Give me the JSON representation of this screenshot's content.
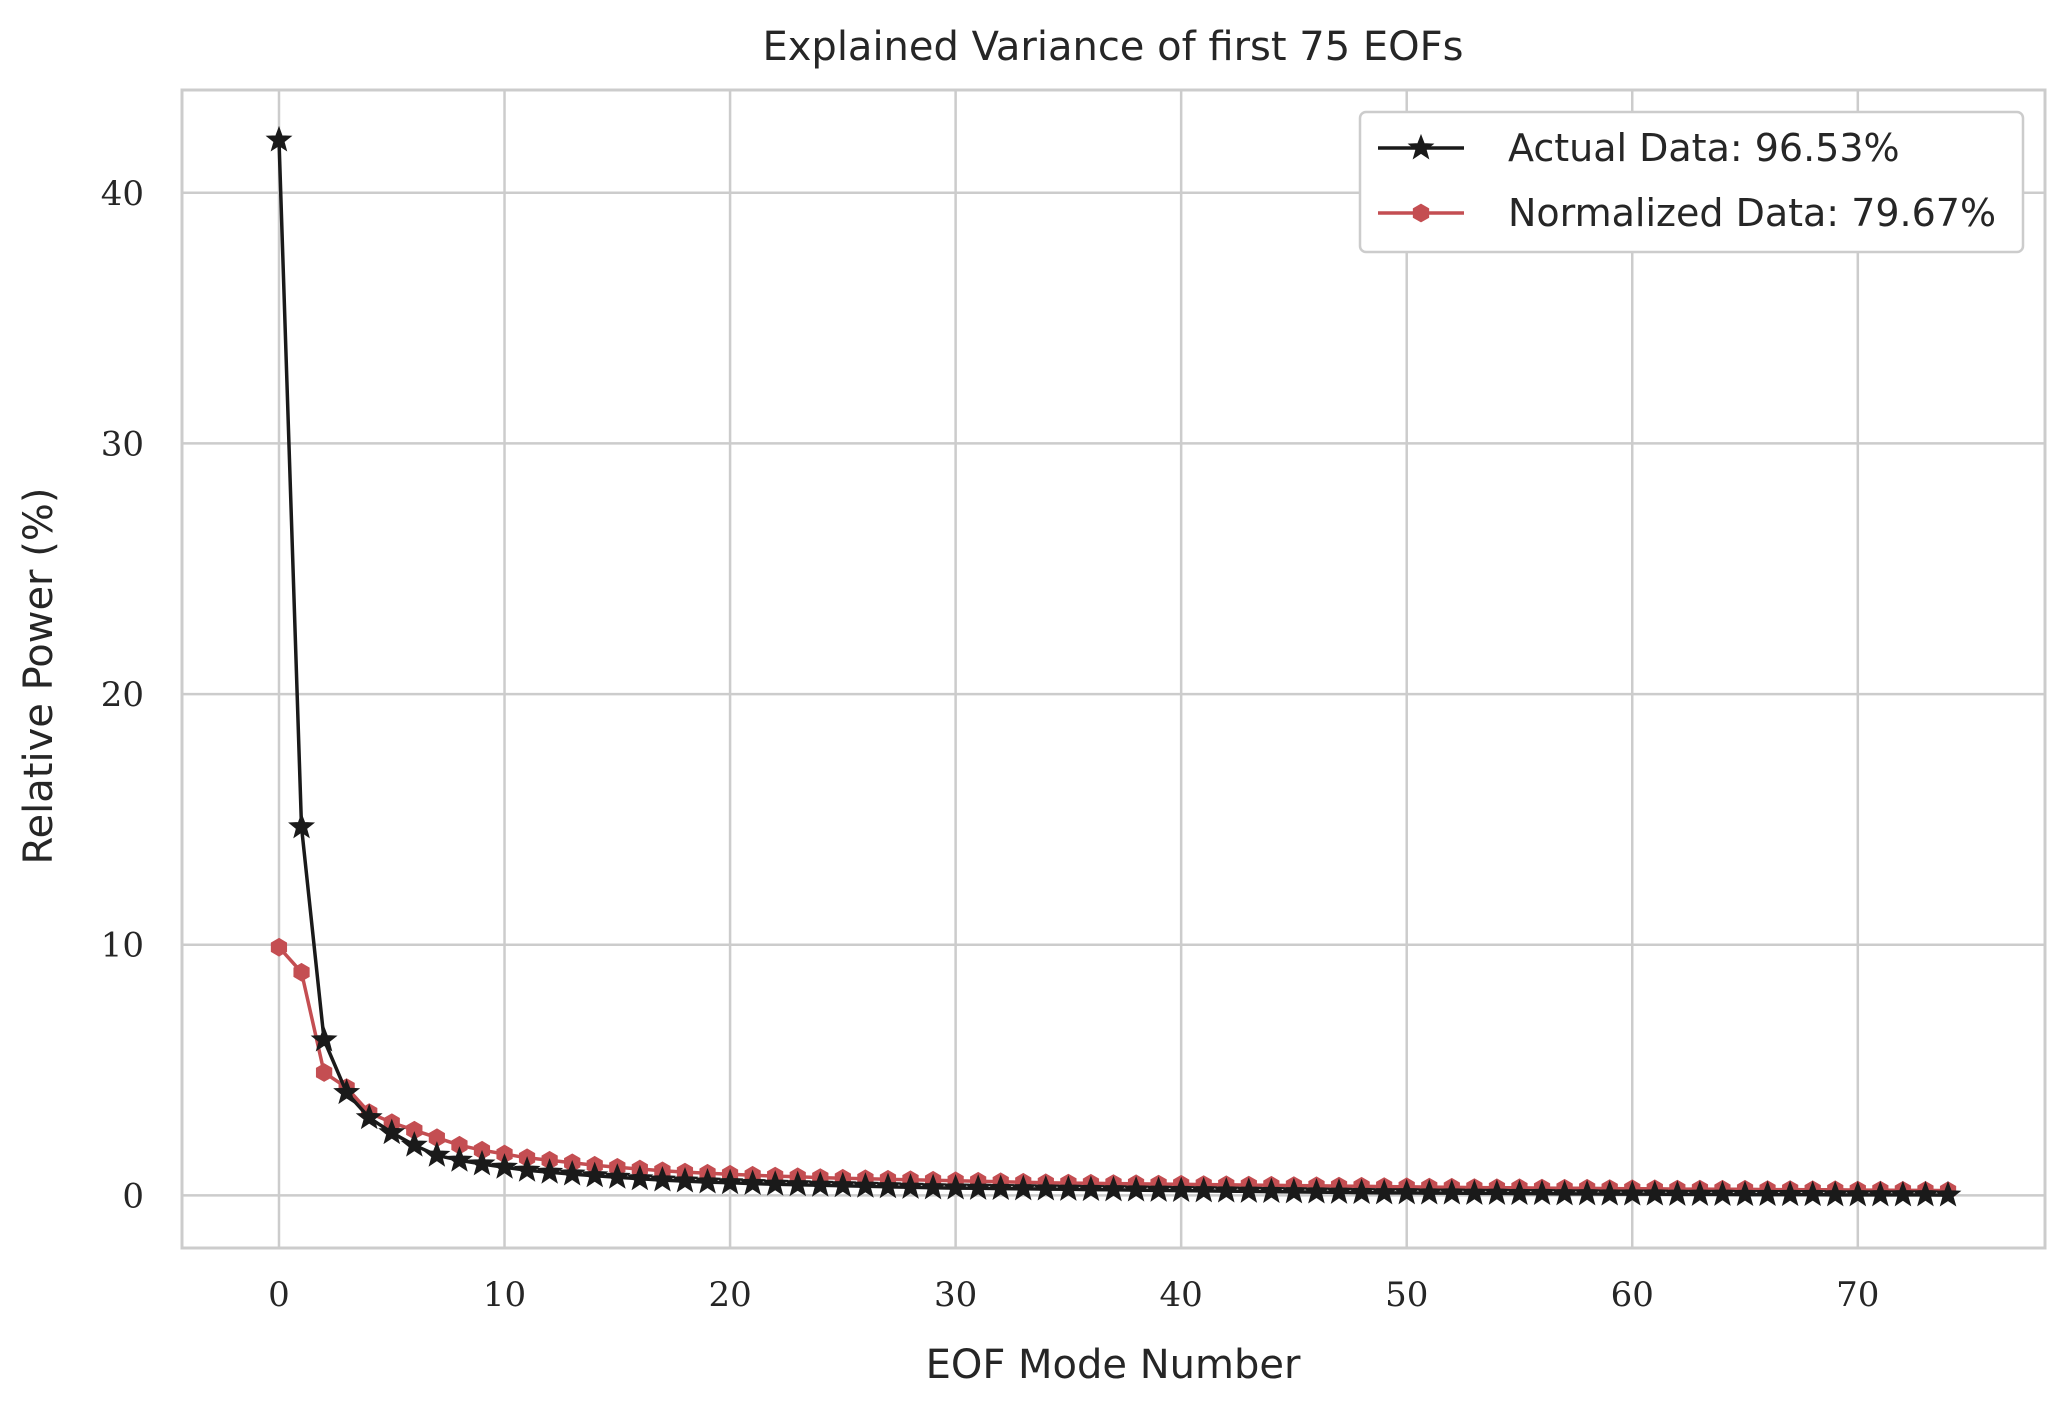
{
  "chart_data": {
    "type": "line",
    "title": "Explained Variance of first 75 EOFs",
    "xlabel": "EOF Mode Number",
    "ylabel": "Relative Power (%)",
    "xlim": [
      -4.3,
      78.3
    ],
    "ylim": [
      -2.1,
      44.1
    ],
    "xticks": [
      0,
      10,
      20,
      30,
      40,
      50,
      60,
      70
    ],
    "yticks": [
      0,
      10,
      20,
      30,
      40
    ],
    "grid": true,
    "legend_position": "top-right",
    "series": [
      {
        "name": "Actual Data: 96.53%",
        "color": "#1a1a1a",
        "marker": "star",
        "x": [
          0,
          1,
          2,
          3,
          4,
          5,
          6,
          7,
          8,
          9,
          10,
          11,
          12,
          13,
          14,
          15,
          16,
          17,
          18,
          19,
          20,
          21,
          22,
          23,
          24,
          25,
          26,
          27,
          28,
          29,
          30,
          31,
          32,
          33,
          34,
          35,
          36,
          37,
          38,
          39,
          40,
          41,
          42,
          43,
          44,
          45,
          46,
          47,
          48,
          49,
          50,
          51,
          52,
          53,
          54,
          55,
          56,
          57,
          58,
          59,
          60,
          61,
          62,
          63,
          64,
          65,
          66,
          67,
          68,
          69,
          70,
          71,
          72,
          73,
          74
        ],
        "values": [
          42.1,
          14.7,
          6.2,
          4.1,
          3.1,
          2.5,
          2.0,
          1.6,
          1.4,
          1.25,
          1.12,
          1.0,
          0.92,
          0.85,
          0.78,
          0.72,
          0.66,
          0.61,
          0.57,
          0.53,
          0.5,
          0.47,
          0.44,
          0.42,
          0.4,
          0.38,
          0.36,
          0.34,
          0.32,
          0.3,
          0.29,
          0.28,
          0.27,
          0.26,
          0.25,
          0.24,
          0.23,
          0.22,
          0.21,
          0.2,
          0.19,
          0.18,
          0.17,
          0.16,
          0.15,
          0.14,
          0.13,
          0.12,
          0.11,
          0.1,
          0.1,
          0.09,
          0.09,
          0.08,
          0.08,
          0.07,
          0.07,
          0.06,
          0.06,
          0.05,
          0.05,
          0.05,
          0.04,
          0.04,
          0.04,
          0.03,
          0.03,
          0.03,
          0.03,
          0.02,
          0.02,
          0.02,
          0.02,
          0.02,
          0.01
        ]
      },
      {
        "name": "Normalized Data: 79.67%",
        "color": "#c44e52",
        "marker": "hexagon",
        "x": [
          0,
          1,
          2,
          3,
          4,
          5,
          6,
          7,
          8,
          9,
          10,
          11,
          12,
          13,
          14,
          15,
          16,
          17,
          18,
          19,
          20,
          21,
          22,
          23,
          24,
          25,
          26,
          27,
          28,
          29,
          30,
          31,
          32,
          33,
          34,
          35,
          36,
          37,
          38,
          39,
          40,
          41,
          42,
          43,
          44,
          45,
          46,
          47,
          48,
          49,
          50,
          51,
          52,
          53,
          54,
          55,
          56,
          57,
          58,
          59,
          60,
          61,
          62,
          63,
          64,
          65,
          66,
          67,
          68,
          69,
          70,
          71,
          72,
          73,
          74
        ],
        "values": [
          9.9,
          8.9,
          4.9,
          4.3,
          3.3,
          2.9,
          2.6,
          2.3,
          2.0,
          1.8,
          1.65,
          1.5,
          1.4,
          1.3,
          1.2,
          1.12,
          1.05,
          0.98,
          0.93,
          0.88,
          0.84,
          0.8,
          0.77,
          0.74,
          0.71,
          0.68,
          0.66,
          0.64,
          0.62,
          0.6,
          0.58,
          0.56,
          0.54,
          0.52,
          0.5,
          0.49,
          0.48,
          0.47,
          0.46,
          0.45,
          0.44,
          0.43,
          0.42,
          0.41,
          0.4,
          0.39,
          0.38,
          0.37,
          0.36,
          0.35,
          0.34,
          0.33,
          0.32,
          0.31,
          0.3,
          0.3,
          0.29,
          0.28,
          0.28,
          0.27,
          0.26,
          0.26,
          0.25,
          0.25,
          0.24,
          0.24,
          0.23,
          0.23,
          0.22,
          0.22,
          0.21,
          0.21,
          0.2,
          0.2,
          0.19
        ]
      }
    ]
  }
}
